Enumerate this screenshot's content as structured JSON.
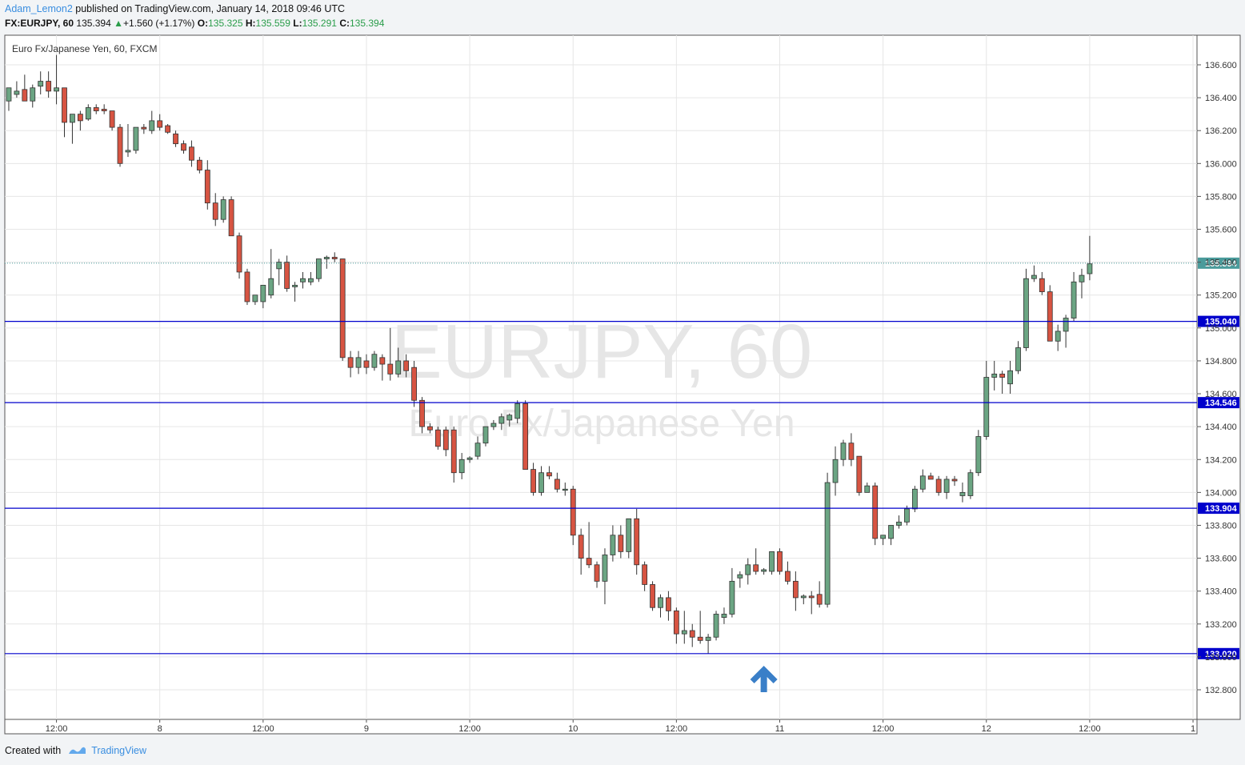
{
  "header": {
    "user": "Adam_Lemon2",
    "published": "published on TradingView.com, January 14, 2018 09:46 UTC",
    "symbol": "FX:EURJPY, 60",
    "last": "135.394",
    "change": "+1.560 (+1.17%)",
    "o_label": "O:",
    "o": "135.325",
    "h_label": "H:",
    "h": "135.559",
    "l_label": "L:",
    "l": "135.291",
    "c_label": "C:",
    "c": "135.394"
  },
  "footer": {
    "created_with": "Created with",
    "brand": "TradingView"
  },
  "colors": {
    "up": "#6ba583",
    "down": "#d75442",
    "level": "#0000cc",
    "last_price": "#4a9b9b",
    "grid": "#e6e6e6"
  },
  "chart_data": {
    "type": "candlestick",
    "title": "Euro Fx/Japanese Yen, 60, FXCM",
    "watermark": "EURJPY, 60",
    "watermark_sub": "Euro Fx/Japanese Yen",
    "ylim": [
      132.62,
      136.78
    ],
    "y_ticks": [
      "132.800",
      "133.000",
      "133.200",
      "133.400",
      "133.600",
      "133.800",
      "134.000",
      "134.200",
      "134.400",
      "134.600",
      "134.800",
      "135.000",
      "135.200",
      "135.400",
      "135.600",
      "135.800",
      "136.000",
      "136.200",
      "136.400",
      "136.600"
    ],
    "x_ticks": [
      {
        "i": 6,
        "label": "12:00"
      },
      {
        "i": 19,
        "label": "8"
      },
      {
        "i": 32,
        "label": "12:00"
      },
      {
        "i": 45,
        "label": "9"
      },
      {
        "i": 58,
        "label": "12:00"
      },
      {
        "i": 71,
        "label": "10"
      },
      {
        "i": 84,
        "label": "12:00"
      },
      {
        "i": 97,
        "label": "11"
      },
      {
        "i": 110,
        "label": "12:00"
      },
      {
        "i": 123,
        "label": "12"
      },
      {
        "i": 136,
        "label": "12:00"
      },
      {
        "i": 149,
        "label": "1"
      }
    ],
    "levels": [
      {
        "value": 135.04,
        "label": "135.040"
      },
      {
        "value": 134.546,
        "label": "134.546"
      },
      {
        "value": 133.904,
        "label": "133.904"
      },
      {
        "value": 133.02,
        "label": "133.020"
      }
    ],
    "last_price": {
      "value": 135.394,
      "label": "135.394"
    },
    "arrow": {
      "i": 95,
      "direction": "up"
    },
    "candles": [
      [
        136.38,
        136.46,
        136.32,
        136.46
      ],
      [
        136.42,
        136.5,
        136.4,
        136.44
      ],
      [
        136.45,
        136.54,
        136.38,
        136.38
      ],
      [
        136.38,
        136.48,
        136.34,
        136.46
      ],
      [
        136.47,
        136.56,
        136.42,
        136.5
      ],
      [
        136.5,
        136.56,
        136.4,
        136.44
      ],
      [
        136.44,
        136.66,
        136.36,
        136.46
      ],
      [
        136.46,
        136.46,
        136.16,
        136.25
      ],
      [
        136.25,
        136.3,
        136.12,
        136.3
      ],
      [
        136.3,
        136.32,
        136.2,
        136.26
      ],
      [
        136.27,
        136.36,
        136.26,
        136.34
      ],
      [
        136.34,
        136.36,
        136.3,
        136.32
      ],
      [
        136.33,
        136.36,
        136.3,
        136.32
      ],
      [
        136.32,
        136.32,
        136.2,
        136.22
      ],
      [
        136.22,
        136.24,
        135.98,
        136.0
      ],
      [
        136.07,
        136.24,
        136.04,
        136.08
      ],
      [
        136.08,
        136.22,
        136.06,
        136.22
      ],
      [
        136.22,
        136.24,
        136.18,
        136.21
      ],
      [
        136.2,
        136.32,
        136.18,
        136.26
      ],
      [
        136.26,
        136.3,
        136.2,
        136.22
      ],
      [
        136.23,
        136.24,
        136.18,
        136.19
      ],
      [
        136.18,
        136.2,
        136.1,
        136.12
      ],
      [
        136.12,
        136.14,
        136.06,
        136.08
      ],
      [
        136.1,
        136.14,
        135.98,
        136.02
      ],
      [
        136.02,
        136.04,
        135.94,
        135.96
      ],
      [
        135.96,
        136.02,
        135.72,
        135.76
      ],
      [
        135.76,
        135.82,
        135.62,
        135.66
      ],
      [
        135.66,
        135.8,
        135.64,
        135.78
      ],
      [
        135.78,
        135.8,
        135.56,
        135.56
      ],
      [
        135.56,
        135.58,
        135.3,
        135.34
      ],
      [
        135.34,
        135.36,
        135.14,
        135.16
      ],
      [
        135.16,
        135.2,
        135.14,
        135.2
      ],
      [
        135.16,
        135.26,
        135.12,
        135.26
      ],
      [
        135.2,
        135.48,
        135.18,
        135.3
      ],
      [
        135.36,
        135.42,
        135.26,
        135.4
      ],
      [
        135.4,
        135.44,
        135.22,
        135.24
      ],
      [
        135.25,
        135.28,
        135.16,
        135.26
      ],
      [
        135.28,
        135.34,
        135.24,
        135.3
      ],
      [
        135.28,
        135.34,
        135.26,
        135.3
      ],
      [
        135.3,
        135.42,
        135.28,
        135.42
      ],
      [
        135.42,
        135.44,
        135.36,
        135.43
      ],
      [
        135.43,
        135.46,
        135.4,
        135.42
      ],
      [
        135.42,
        135.42,
        134.8,
        134.82
      ],
      [
        134.82,
        134.86,
        134.7,
        134.76
      ],
      [
        134.76,
        134.86,
        134.72,
        134.82
      ],
      [
        134.8,
        134.84,
        134.72,
        134.76
      ],
      [
        134.76,
        134.86,
        134.74,
        134.84
      ],
      [
        134.82,
        134.84,
        134.68,
        134.78
      ],
      [
        134.78,
        135.0,
        134.68,
        134.72
      ],
      [
        134.72,
        134.88,
        134.7,
        134.8
      ],
      [
        134.8,
        134.84,
        134.7,
        134.74
      ],
      [
        134.76,
        134.8,
        134.52,
        134.56
      ],
      [
        134.56,
        134.58,
        134.36,
        134.4
      ],
      [
        134.4,
        134.42,
        134.36,
        134.38
      ],
      [
        134.38,
        134.4,
        134.26,
        134.28
      ],
      [
        134.38,
        134.4,
        134.22,
        134.26
      ],
      [
        134.38,
        134.4,
        134.06,
        134.12
      ],
      [
        134.12,
        134.24,
        134.08,
        134.2
      ],
      [
        134.2,
        134.22,
        134.18,
        134.21
      ],
      [
        134.22,
        134.34,
        134.2,
        134.3
      ],
      [
        134.3,
        134.4,
        134.28,
        134.4
      ],
      [
        134.4,
        134.44,
        134.38,
        134.42
      ],
      [
        134.42,
        134.48,
        134.38,
        134.46
      ],
      [
        134.44,
        134.48,
        134.4,
        134.47
      ],
      [
        134.45,
        134.56,
        134.42,
        134.54
      ],
      [
        134.54,
        134.56,
        134.16,
        134.14
      ],
      [
        134.14,
        134.18,
        133.98,
        134.0
      ],
      [
        134.0,
        134.16,
        133.98,
        134.12
      ],
      [
        134.12,
        134.16,
        134.08,
        134.1
      ],
      [
        134.08,
        134.12,
        134.0,
        134.02
      ],
      [
        134.02,
        134.06,
        133.98,
        134.02
      ],
      [
        134.02,
        134.04,
        133.68,
        133.74
      ],
      [
        133.74,
        133.78,
        133.5,
        133.6
      ],
      [
        133.6,
        133.82,
        133.54,
        133.56
      ],
      [
        133.56,
        133.58,
        133.42,
        133.46
      ],
      [
        133.46,
        133.66,
        133.32,
        133.62
      ],
      [
        133.62,
        133.8,
        133.58,
        133.74
      ],
      [
        133.74,
        133.8,
        133.6,
        133.64
      ],
      [
        133.64,
        133.84,
        133.6,
        133.84
      ],
      [
        133.84,
        133.9,
        133.5,
        133.56
      ],
      [
        133.56,
        133.58,
        133.4,
        133.44
      ],
      [
        133.44,
        133.46,
        133.28,
        133.3
      ],
      [
        133.3,
        133.38,
        133.24,
        133.36
      ],
      [
        133.36,
        133.4,
        133.22,
        133.28
      ],
      [
        133.28,
        133.3,
        133.08,
        133.14
      ],
      [
        133.14,
        133.28,
        133.08,
        133.16
      ],
      [
        133.16,
        133.2,
        133.06,
        133.12
      ],
      [
        133.12,
        133.28,
        133.08,
        133.1
      ],
      [
        133.1,
        133.14,
        133.02,
        133.12
      ],
      [
        133.12,
        133.28,
        133.1,
        133.26
      ],
      [
        133.24,
        133.3,
        133.2,
        133.26
      ],
      [
        133.26,
        133.54,
        133.24,
        133.46
      ],
      [
        133.48,
        133.52,
        133.42,
        133.5
      ],
      [
        133.5,
        133.6,
        133.44,
        133.56
      ],
      [
        133.56,
        133.66,
        133.5,
        133.52
      ],
      [
        133.52,
        133.54,
        133.5,
        133.53
      ],
      [
        133.52,
        133.64,
        133.5,
        133.64
      ],
      [
        133.64,
        133.66,
        133.5,
        133.52
      ],
      [
        133.52,
        133.58,
        133.44,
        133.46
      ],
      [
        133.46,
        133.52,
        133.28,
        133.36
      ],
      [
        133.36,
        133.38,
        133.32,
        133.37
      ],
      [
        133.37,
        133.4,
        133.26,
        133.36
      ],
      [
        133.38,
        133.46,
        133.3,
        133.32
      ],
      [
        133.32,
        134.12,
        133.3,
        134.06
      ],
      [
        134.06,
        134.28,
        133.98,
        134.2
      ],
      [
        134.2,
        134.32,
        134.16,
        134.3
      ],
      [
        134.3,
        134.36,
        134.16,
        134.2
      ],
      [
        134.22,
        134.22,
        133.98,
        134.0
      ],
      [
        134.0,
        134.06,
        134.0,
        134.04
      ],
      [
        134.04,
        134.06,
        133.68,
        133.72
      ],
      [
        133.72,
        133.74,
        133.68,
        133.74
      ],
      [
        133.72,
        133.8,
        133.68,
        133.8
      ],
      [
        133.8,
        133.86,
        133.78,
        133.82
      ],
      [
        133.82,
        133.92,
        133.8,
        133.9
      ],
      [
        133.9,
        134.04,
        133.88,
        134.02
      ],
      [
        134.02,
        134.14,
        134.0,
        134.1
      ],
      [
        134.1,
        134.12,
        134.08,
        134.08
      ],
      [
        134.08,
        134.1,
        133.98,
        134.0
      ],
      [
        134.0,
        134.1,
        133.96,
        134.08
      ],
      [
        134.08,
        134.1,
        134.04,
        134.07
      ],
      [
        133.98,
        134.06,
        133.94,
        134.0
      ],
      [
        133.98,
        134.14,
        133.96,
        134.12
      ],
      [
        134.12,
        134.38,
        134.1,
        134.34
      ],
      [
        134.34,
        134.8,
        134.32,
        134.7
      ],
      [
        134.7,
        134.8,
        134.62,
        134.72
      ],
      [
        134.72,
        134.74,
        134.6,
        134.7
      ],
      [
        134.66,
        134.8,
        134.6,
        134.74
      ],
      [
        134.74,
        134.92,
        134.72,
        134.88
      ],
      [
        134.88,
        135.36,
        134.86,
        135.3
      ],
      [
        135.3,
        135.38,
        135.28,
        135.32
      ],
      [
        135.3,
        135.34,
        135.2,
        135.22
      ],
      [
        135.22,
        135.26,
        134.92,
        134.92
      ],
      [
        134.92,
        135.02,
        134.86,
        134.98
      ],
      [
        134.98,
        135.08,
        134.88,
        135.06
      ],
      [
        135.06,
        135.34,
        135.04,
        135.28
      ],
      [
        135.28,
        135.36,
        135.18,
        135.32
      ],
      [
        135.33,
        135.56,
        135.29,
        135.39
      ]
    ]
  }
}
